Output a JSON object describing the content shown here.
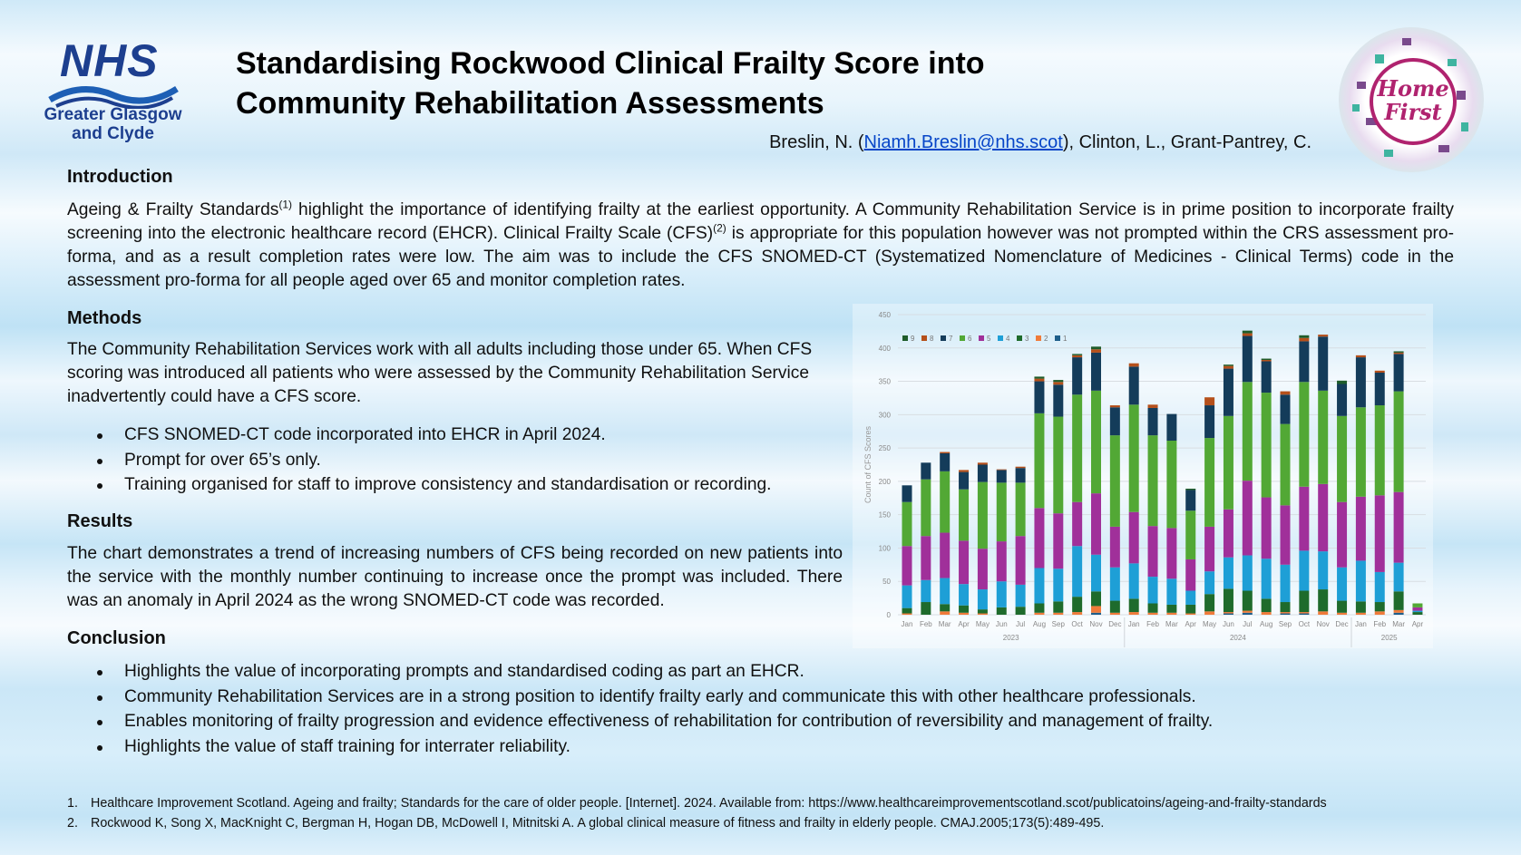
{
  "logos": {
    "nhs": "NHS",
    "nhs_board": "Greater Glasgow and Clyde",
    "home_first": "Home First"
  },
  "title": {
    "line1": "Standardising Rockwood Clinical Frailty Score into",
    "line2": "Community Rehabilitation Assessments"
  },
  "authors": {
    "before": "Breslin, N. (",
    "email": "Niamh.Breslin@nhs.scot",
    "after": "), Clinton, L., Grant-Pantrey, C."
  },
  "introduction": {
    "heading": "Introduction",
    "t1": "Ageing & Frailty Standards",
    "s1": "(1)",
    "t2": " highlight the importance of identifying frailty at the earliest opportunity. A Community Rehabilitation Service is in prime position to incorporate frailty screening into the electronic healthcare record (EHCR). Clinical Frailty Scale (CFS)",
    "s2": "(2)",
    "t3": " is appropriate for this population however was not prompted within the CRS assessment pro-forma, and as a result completion rates were low. The aim was to include the CFS SNOMED-CT (Systematized Nomenclature of Medicines - Clinical Terms) code in the assessment pro-forma for all people aged over 65 and monitor completion rates."
  },
  "methods": {
    "heading": "Methods",
    "text": "The Community Rehabilitation Services work with all adults including those under 65. When CFS scoring was introduced all patients who were assessed by the Community Rehabilitation Service inadvertently could have a CFS score.",
    "bullets": [
      "CFS SNOMED-CT code incorporated into EHCR in April 2024.",
      "Prompt for over 65’s only.",
      "Training organised for staff to improve consistency and standardisation or recording."
    ]
  },
  "results": {
    "heading": "Results",
    "text": "The chart demonstrates a trend of increasing numbers of CFS being recorded on new patients into the service with the monthly number continuing to increase once the prompt was included. There was an anomaly in April 2024 as the wrong SNOMED-CT code was recorded."
  },
  "conclusion": {
    "heading": "Conclusion",
    "bullets": [
      "Highlights the value of incorporating prompts and standardised coding as part an EHCR.",
      "Community Rehabilitation Services are in a strong position to identify frailty early and communicate this with other healthcare professionals.",
      "Enables monitoring of frailty progression and evidence effectiveness of rehabilitation for contribution of reversibility and management of frailty.",
      "Highlights the value of staff training for interrater reliability."
    ]
  },
  "references": [
    {
      "n": "1.",
      "text": "Healthcare Improvement Scotland. Ageing and frailty; Standards for the care of older people. [Internet]. 2024. Available from: https://www.healthcareimprovementscotland.scot/publicatoins/ageing-and-frailty-standards"
    },
    {
      "n": "2.",
      "text": "Rockwood K, Song X, MacKnight C, Bergman H, Hogan DB, McDowell I, Mitnitski A. A global clinical measure of fitness and frailty in elderly people. CMAJ.2005;173(5):489-495."
    }
  ],
  "chart_data": {
    "type": "bar",
    "stacked": true,
    "ylabel": "Count of CFS Scores",
    "ylim": [
      0,
      450
    ],
    "yticks": [
      0,
      50,
      100,
      150,
      200,
      250,
      300,
      350,
      400,
      450
    ],
    "grid": true,
    "legend_placement": "top-left",
    "categories": [
      "Jan",
      "Feb",
      "Mar",
      "Apr",
      "May",
      "Jun",
      "Jul",
      "Aug",
      "Sep",
      "Oct",
      "Nov",
      "Dec",
      "Jan",
      "Feb",
      "Mar",
      "Apr",
      "May",
      "Jun",
      "Jul",
      "Aug",
      "Sep",
      "Oct",
      "Nov",
      "Dec",
      "Jan",
      "Feb",
      "Mar",
      "Apr"
    ],
    "year_groups": [
      {
        "label": "2023",
        "count": 12
      },
      {
        "label": "2024",
        "count": 12
      },
      {
        "label": "2025",
        "count": 4
      }
    ],
    "series": [
      {
        "name": "1",
        "color": "#1f5e8a",
        "values": [
          0,
          0,
          0,
          0,
          0,
          0,
          0,
          0,
          0,
          0,
          3,
          0,
          0,
          0,
          0,
          0,
          0,
          2,
          3,
          0,
          2,
          2,
          0,
          0,
          0,
          0,
          3,
          0
        ]
      },
      {
        "name": "2",
        "color": "#f07b3a",
        "values": [
          2,
          0,
          5,
          3,
          2,
          0,
          0,
          3,
          3,
          4,
          10,
          3,
          4,
          3,
          3,
          2,
          5,
          2,
          3,
          4,
          2,
          2,
          5,
          3,
          3,
          5,
          4,
          0
        ]
      },
      {
        "name": "3",
        "color": "#1e6b2c",
        "values": [
          8,
          19,
          11,
          11,
          6,
          11,
          12,
          14,
          17,
          23,
          22,
          18,
          20,
          14,
          12,
          13,
          26,
          35,
          30,
          20,
          15,
          32,
          33,
          18,
          17,
          14,
          28,
          4
        ]
      },
      {
        "name": "4",
        "color": "#1e9fd6",
        "values": [
          34,
          33,
          39,
          32,
          30,
          39,
          33,
          53,
          49,
          76,
          55,
          50,
          53,
          40,
          39,
          21,
          34,
          47,
          53,
          60,
          56,
          60,
          57,
          50,
          61,
          45,
          43,
          2
        ]
      },
      {
        "name": "5",
        "color": "#a0309a",
        "values": [
          59,
          66,
          68,
          65,
          61,
          60,
          73,
          90,
          83,
          66,
          92,
          61,
          77,
          76,
          76,
          47,
          67,
          72,
          112,
          92,
          89,
          96,
          101,
          98,
          96,
          115,
          106,
          5
        ]
      },
      {
        "name": "6",
        "color": "#52a835",
        "values": [
          66,
          85,
          92,
          77,
          100,
          88,
          80,
          142,
          145,
          161,
          154,
          137,
          161,
          136,
          131,
          73,
          133,
          140,
          148,
          157,
          122,
          157,
          140,
          129,
          134,
          135,
          151,
          6
        ]
      },
      {
        "name": "7",
        "color": "#143c5a",
        "values": [
          25,
          25,
          27,
          26,
          26,
          19,
          22,
          48,
          48,
          56,
          57,
          42,
          57,
          41,
          40,
          31,
          49,
          71,
          69,
          47,
          44,
          61,
          81,
          48,
          75,
          49,
          56,
          0
        ]
      },
      {
        "name": "8",
        "color": "#b5501b",
        "values": [
          0,
          0,
          2,
          3,
          3,
          1,
          2,
          4,
          4,
          3,
          5,
          3,
          5,
          5,
          0,
          0,
          12,
          4,
          4,
          2,
          5,
          5,
          3,
          0,
          3,
          3,
          2,
          0
        ]
      },
      {
        "name": "9",
        "color": "#1f5c2a",
        "values": [
          0,
          0,
          0,
          0,
          0,
          0,
          0,
          3,
          3,
          2,
          4,
          0,
          0,
          0,
          0,
          2,
          0,
          2,
          4,
          2,
          0,
          4,
          0,
          5,
          0,
          0,
          2,
          0
        ]
      }
    ]
  }
}
